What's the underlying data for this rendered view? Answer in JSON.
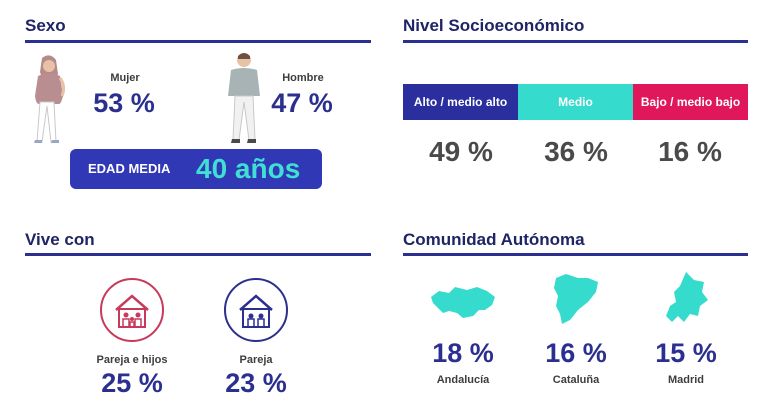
{
  "sexo": {
    "title": "Sexo",
    "mujer": {
      "label": "Mujer",
      "value": "53 %"
    },
    "hombre": {
      "label": "Hombre",
      "value": "47 %"
    },
    "edad": {
      "label": "EDAD MEDIA",
      "value": "40 años"
    }
  },
  "nse": {
    "title": "Nivel Socioeconómico",
    "segments": [
      {
        "label": "Alto / medio alto",
        "value": "49 %",
        "color": "#2b2f9e"
      },
      {
        "label": "Medio",
        "value": "36 %",
        "color": "#35dccd"
      },
      {
        "label": "Bajo / medio bajo",
        "value": "16 %",
        "color": "#e0185b"
      }
    ]
  },
  "vive": {
    "title": "Vive con",
    "items": [
      {
        "label": "Pareja e hijos",
        "value": "25 %",
        "icon": "family-house-icon",
        "color": "#c83a5c"
      },
      {
        "label": "Pareja",
        "value": "23 %",
        "icon": "couple-house-icon",
        "color": "#2b2f8f"
      }
    ]
  },
  "comunidad": {
    "title": "Comunidad Autónoma",
    "items": [
      {
        "label": "Andalucía",
        "value": "18 %"
      },
      {
        "label": "Cataluña",
        "value": "16 %"
      },
      {
        "label": "Madrid",
        "value": "15 %"
      }
    ],
    "map_color": "#35dccd"
  }
}
